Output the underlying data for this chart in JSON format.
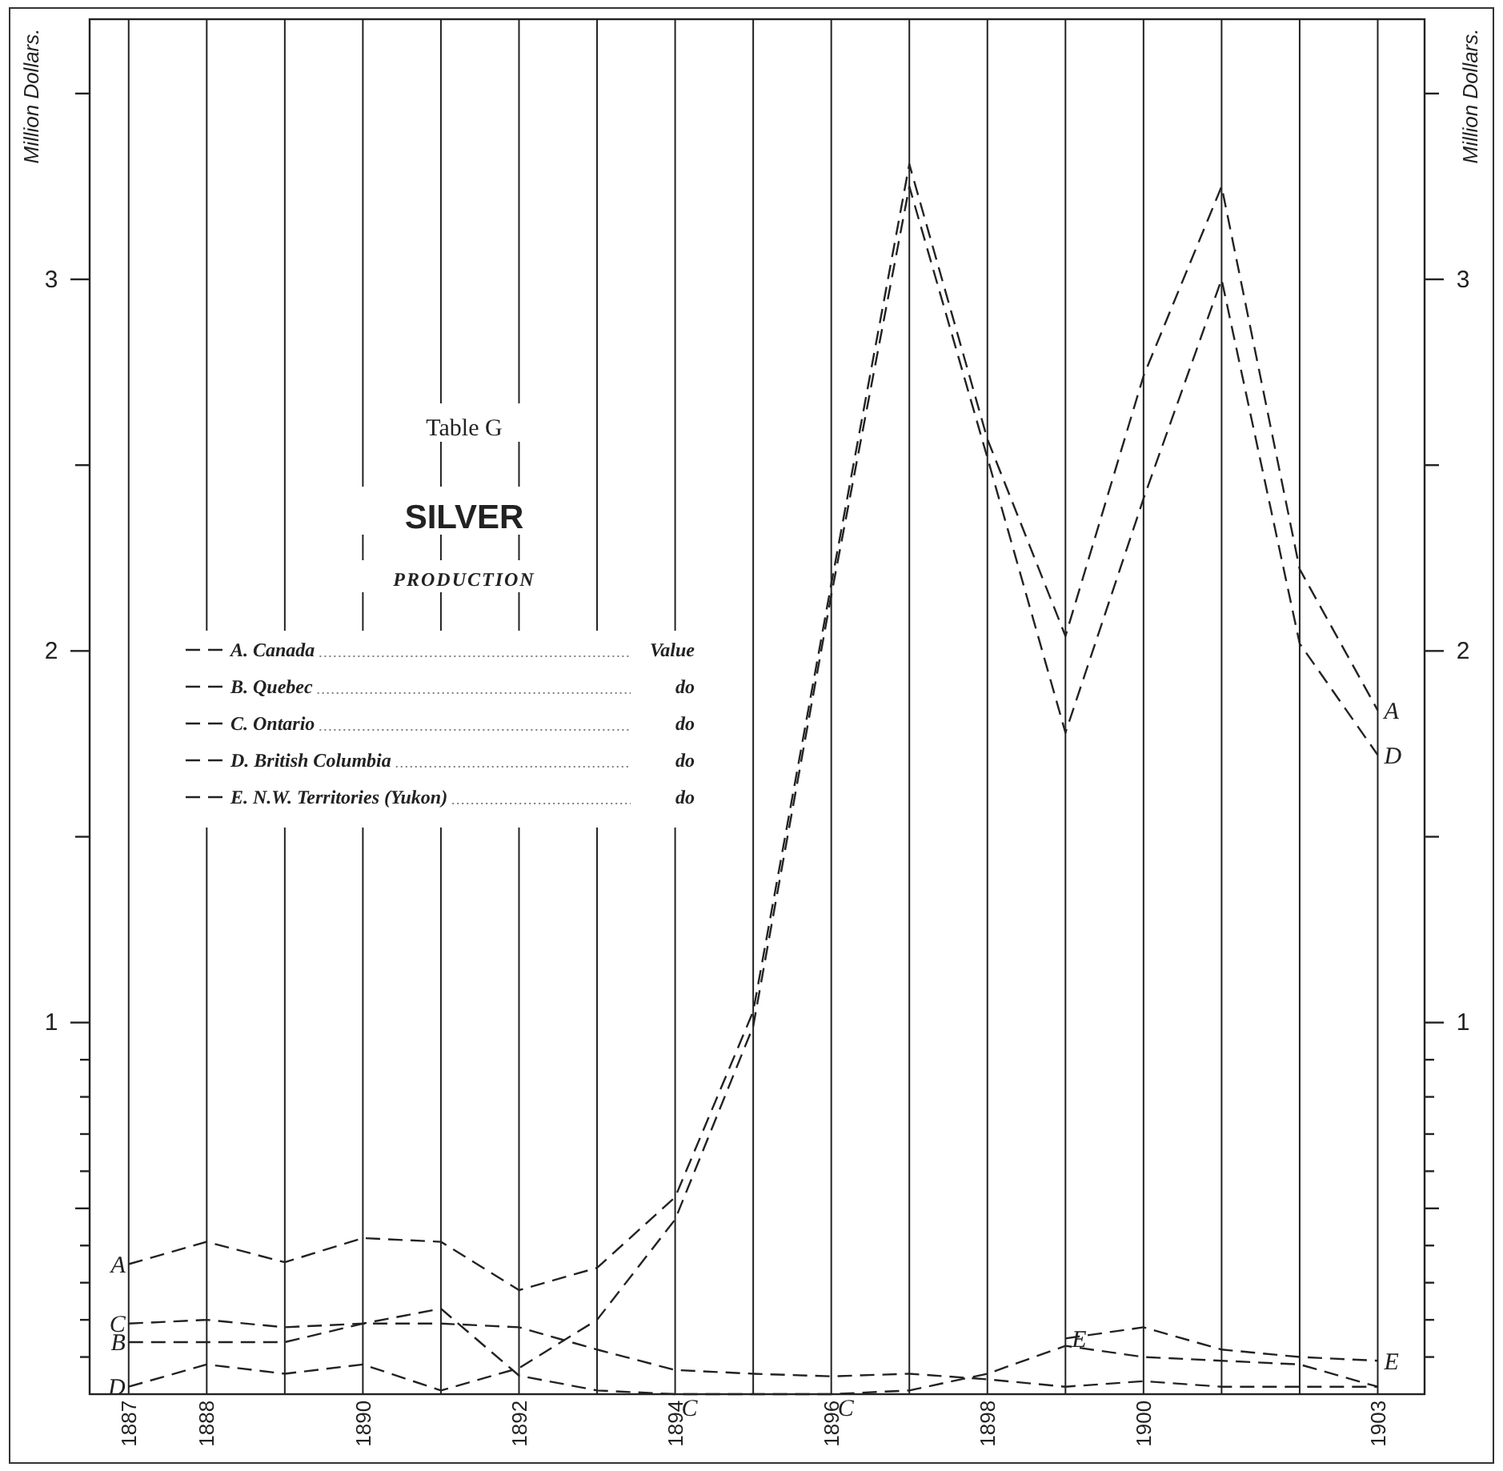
{
  "chart_data": {
    "type": "line",
    "title": "SILVER",
    "subtitle": "PRODUCTION",
    "ylabel": "Million Dollars.",
    "y2label": "Million Dollars.",
    "annotations": [
      "Table G",
      "Value",
      "do",
      "do",
      "do",
      "do",
      {
        "text": "A",
        "x": 1887,
        "y": 0.35
      },
      {
        "text": "C",
        "x": 1887,
        "y": 0.19
      },
      {
        "text": "B",
        "x": 1887,
        "y": 0.14
      },
      {
        "text": "D",
        "x": 1887,
        "y": 0.02
      },
      {
        "text": "C",
        "x": 1894,
        "y": 0
      },
      {
        "text": "C",
        "x": 1896,
        "y": 0
      },
      {
        "text": "E",
        "x": 1899,
        "y": 0.15
      },
      {
        "text": "E",
        "x": 1903,
        "y": 0.09
      },
      {
        "text": "A",
        "x": 1903,
        "y": 1.84
      },
      {
        "text": "D",
        "x": 1903,
        "y": 1.72
      }
    ],
    "x": [
      1887,
      1888,
      1889,
      1890,
      1891,
      1892,
      1893,
      1894,
      1895,
      1896,
      1897,
      1898,
      1899,
      1900,
      1901,
      1902,
      1903
    ],
    "series": [
      {
        "name": "A. Canada",
        "color": "#222222",
        "values": [
          0.35,
          0.41,
          0.355,
          0.42,
          0.41,
          0.28,
          0.34,
          0.53,
          1.03,
          2.18,
          3.31,
          2.57,
          2.04,
          2.74,
          3.25,
          2.22,
          1.84
        ]
      },
      {
        "name": "B. Quebec",
        "color": "#222222",
        "values": [
          0.14,
          0.14,
          0.14,
          0.19,
          0.19,
          0.18,
          0.12,
          0.065,
          0.055,
          0.048,
          0.055,
          0.04,
          0.02,
          0.035,
          0.02,
          0.02,
          0.02
        ]
      },
      {
        "name": "C. Ontario",
        "color": "#222222",
        "values": [
          0.19,
          0.2,
          0.18,
          0.19,
          0.23,
          0.05,
          0.01,
          0,
          0,
          0,
          0.01,
          0.055,
          0.13,
          0.1,
          0.09,
          0.08,
          0.02
        ]
      },
      {
        "name": "D. British Columbia",
        "color": "#222222",
        "values": [
          0.02,
          0.08,
          0.055,
          0.08,
          0.01,
          0.07,
          0.2,
          0.47,
          0.99,
          2.15,
          3.25,
          2.52,
          1.78,
          2.41,
          3.0,
          2.02,
          1.72
        ]
      },
      {
        "name": "E. N.W. Territories (Yukon)",
        "color": "#222222",
        "x": [
          1899,
          1900,
          1901,
          1902,
          1903
        ],
        "values": [
          0.15,
          0.18,
          0.12,
          0.1,
          0.09
        ]
      }
    ],
    "xlim": [
      1886.5,
      1903.6
    ],
    "xticks": [
      1887,
      1888,
      {
        "value": 1889,
        "label": null
      },
      1890,
      {
        "value": 1891,
        "label": null
      },
      1892,
      {
        "value": 1893,
        "label": null
      },
      1894,
      {
        "value": 1895,
        "label": null
      },
      1896,
      {
        "value": 1897,
        "label": null
      },
      1898,
      {
        "value": 1899,
        "label": null
      },
      1900,
      {
        "value": 1901,
        "label": null
      },
      {
        "value": 1902,
        "label": null
      },
      1903
    ],
    "ylim": [
      0,
      3.7
    ],
    "yticks": [
      {
        "value": 0.1,
        "label": null
      },
      {
        "value": 0.2,
        "label": null
      },
      {
        "value": 0.3,
        "label": null
      },
      {
        "value": 0.4,
        "label": null
      },
      {
        "value": 0.5,
        "label": null
      },
      {
        "value": 0.6,
        "label": null
      },
      {
        "value": 0.7,
        "label": null
      },
      {
        "value": 0.8,
        "label": null
      },
      {
        "value": 0.9,
        "label": null
      },
      1,
      {
        "value": 1.5,
        "label": null
      },
      2,
      {
        "value": 2.5,
        "label": null
      },
      3,
      {
        "value": 3.5,
        "label": null
      }
    ],
    "y2lim": [
      0,
      3.7
    ],
    "y2ticks": [
      {
        "value": 0.1,
        "label": null
      },
      {
        "value": 0.2,
        "label": null
      },
      {
        "value": 0.3,
        "label": null
      },
      {
        "value": 0.4,
        "label": null
      },
      {
        "value": 0.5,
        "label": null
      },
      {
        "value": 0.6,
        "label": null
      },
      {
        "value": 0.7,
        "label": null
      },
      {
        "value": 0.8,
        "label": null
      },
      {
        "value": 0.9,
        "label": null
      },
      1,
      {
        "value": 1.5,
        "label": null
      },
      2,
      {
        "value": 2.5,
        "label": null
      },
      3,
      {
        "value": 3.5,
        "label": null
      }
    ],
    "grid": "x",
    "legend": "left",
    "marker": "none",
    "line_style": "dashed"
  }
}
